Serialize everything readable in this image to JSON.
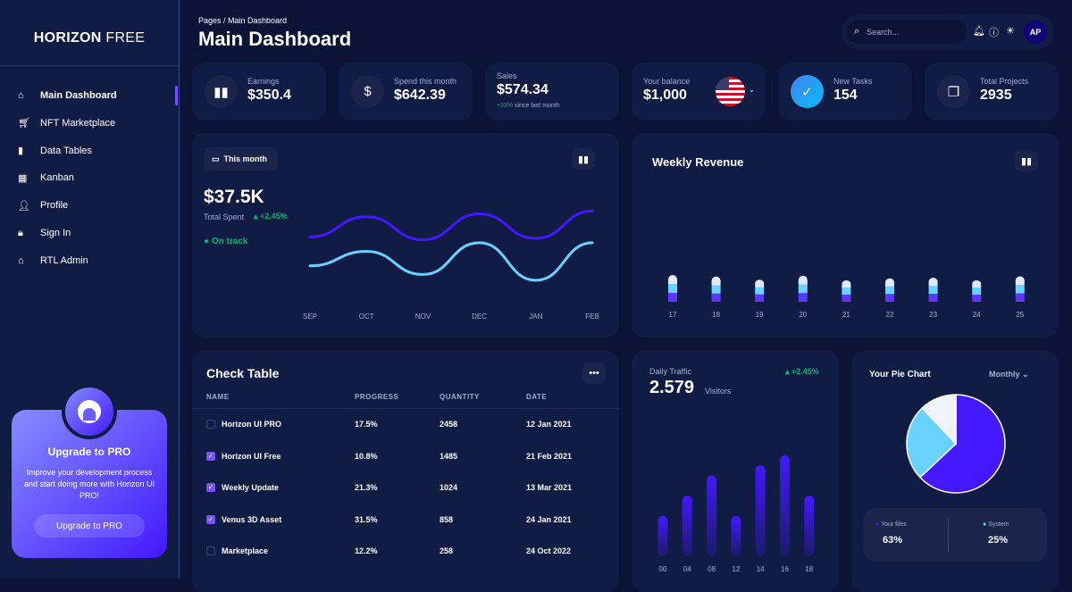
{
  "sidebar": {
    "logo_bold": "HORIZON",
    "logo_light": "FREE",
    "items": [
      {
        "label": "Main Dashboard",
        "icon": "home-icon"
      },
      {
        "label": "NFT Marketplace",
        "icon": "cart-icon"
      },
      {
        "label": "Data Tables",
        "icon": "bar-chart-icon"
      },
      {
        "label": "Kanban",
        "icon": "dashboard-icon"
      },
      {
        "label": "Profile",
        "icon": "person-icon"
      },
      {
        "label": "Sign In",
        "icon": "lock-icon"
      },
      {
        "label": "RTL Admin",
        "icon": "home-icon"
      }
    ],
    "promo": {
      "title": "Upgrade to PRO",
      "text": "Improve your development process and start doing more with Horizon UI PRO!",
      "button": "Upgrade to PRO"
    }
  },
  "header": {
    "breadcrumb": "Pages  /  Main Dashboard",
    "title": "Main Dashboard",
    "search_placeholder": "Search...",
    "avatar": "AP"
  },
  "stats": [
    {
      "label": "Earnings",
      "value": "$350.4"
    },
    {
      "label": "Spend this month",
      "value": "$642.39"
    },
    {
      "label": "Sales",
      "value": "$574.34",
      "delta": "+23%",
      "delta_text": "since last month"
    },
    {
      "label": "Your balance",
      "value": "$1,000"
    },
    {
      "label": "New Tasks",
      "value": "154"
    },
    {
      "label": "Total Projects",
      "value": "2935"
    }
  ],
  "total_spent": {
    "button": "This month",
    "value": "$37.5K",
    "label": "Total Spent",
    "delta": "+2.45%",
    "status": "On track"
  },
  "weekly": {
    "title": "Weekly Revenue"
  },
  "table": {
    "title": "Check Table",
    "columns": [
      "NAME",
      "PROGRESS",
      "QUANTITY",
      "DATE"
    ],
    "rows": [
      {
        "name": "Horizon UI PRO",
        "progress": "17.5%",
        "quantity": "2458",
        "date": "12 Jan 2021",
        "checked": false
      },
      {
        "name": "Horizon UI Free",
        "progress": "10.8%",
        "quantity": "1485",
        "date": "21 Feb 2021",
        "checked": true
      },
      {
        "name": "Weekly Update",
        "progress": "21.3%",
        "quantity": "1024",
        "date": "13 Mar 2021",
        "checked": true
      },
      {
        "name": "Venus 3D Asset",
        "progress": "31.5%",
        "quantity": "858",
        "date": "24 Jan 2021",
        "checked": true
      },
      {
        "name": "Marketplace",
        "progress": "12.2%",
        "quantity": "258",
        "date": "24 Oct 2022",
        "checked": false
      }
    ]
  },
  "traffic": {
    "title": "Daily Traffic",
    "value": "2.579",
    "unit": "Visitors",
    "delta": "+2.45%"
  },
  "pie": {
    "title": "Your Pie Chart",
    "select": "Monthly",
    "legend": [
      {
        "label": "Your files",
        "value": "63%"
      },
      {
        "label": "System",
        "value": "25%"
      }
    ]
  },
  "colors": {
    "brand": "#4318ff",
    "light_blue": "#6ad2ff",
    "purple": "#7551ff",
    "green": "#01b574",
    "card": "#111c44",
    "bg": "#0b1437"
  },
  "chart_data": [
    {
      "type": "line",
      "x": [
        "SEP",
        "OCT",
        "NOV",
        "DEC",
        "JAN",
        "FEB"
      ],
      "series": [
        {
          "values": [
            50,
            64,
            48,
            66,
            49,
            68
          ],
          "color": "#4318ff"
        },
        {
          "values": [
            30,
            40,
            24,
            46,
            20,
            46
          ],
          "color": "#6ad2ff"
        }
      ],
      "grid": false
    },
    {
      "type": "bar",
      "stacked": true,
      "categories": [
        "17",
        "18",
        "19",
        "20",
        "21",
        "22",
        "23",
        "24",
        "25"
      ],
      "series": [
        {
          "values": [
            400,
            370,
            330,
            390,
            320,
            350,
            360,
            320,
            380
          ],
          "color": "#5e37ff"
        },
        {
          "values": [
            400,
            370,
            330,
            390,
            320,
            350,
            360,
            320,
            380
          ],
          "color": "#6ad2ff"
        },
        {
          "values": [
            400,
            390,
            330,
            390,
            320,
            350,
            360,
            320,
            380
          ],
          "color": "#e1e9f8"
        }
      ],
      "grid": false
    },
    {
      "type": "bar",
      "categories": [
        "00",
        "04",
        "08",
        "12",
        "14",
        "16",
        "18"
      ],
      "values": [
        20,
        30,
        40,
        20,
        45,
        50,
        30
      ],
      "grid": false
    },
    {
      "type": "pie",
      "labels": [
        "Your files",
        "System",
        ""
      ],
      "values": [
        63,
        25,
        12
      ],
      "colors": [
        "#4318ff",
        "#6ad2ff",
        "#eff4fb"
      ]
    }
  ]
}
